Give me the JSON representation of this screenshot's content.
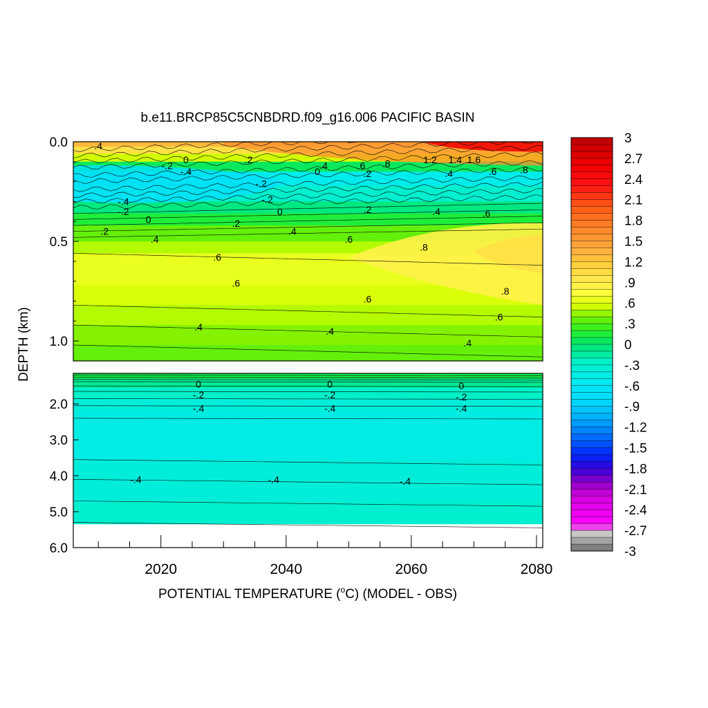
{
  "chart_data": {
    "type": "heatmap",
    "title": "b.e11.BRCP85C5CNBDRD.f09_g16.006 PACIFIC BASIN",
    "xlabel_main": "POTENTIAL TEMPERATURE (",
    "xlabel_unit": "C) (MODEL - OBS)",
    "xlabel_degree": "o",
    "ylabel": "DEPTH (km)",
    "xlim": [
      2006,
      2081
    ],
    "x_ticks": [
      "2020",
      "2040",
      "2060",
      "2080"
    ],
    "x_tick_values": [
      2020,
      2040,
      2060,
      2080
    ],
    "upper_panel": {
      "ylim": [
        0.0,
        1.1
      ],
      "y_ticks": [
        "0.0",
        "0.5",
        "1.0"
      ],
      "y_tick_values": [
        0.0,
        0.5,
        1.0
      ]
    },
    "lower_panel": {
      "ylim": [
        1.15,
        6.0
      ],
      "y_ticks": [
        "2.0",
        "3.0",
        "4.0",
        "5.0",
        "6.0"
      ],
      "y_tick_values": [
        2.0,
        3.0,
        4.0,
        5.0,
        6.0
      ],
      "data_bottom_depth": 5.35
    },
    "colorbar": {
      "range": [
        -3,
        3
      ],
      "labels": [
        "3",
        "2.7",
        "2.4",
        "2.1",
        "1.8",
        "1.5",
        "1.2",
        ".9",
        ".6",
        ".3",
        "0",
        "-.3",
        "-.6",
        "-.9",
        "-1.2",
        "-1.5",
        "-1.8",
        "-2.1",
        "-2.4",
        "-2.7",
        "-3"
      ],
      "label_values": [
        3,
        2.7,
        2.4,
        2.1,
        1.8,
        1.5,
        1.2,
        0.9,
        0.6,
        0.3,
        0,
        -0.3,
        -0.6,
        -0.9,
        -1.2,
        -1.5,
        -1.8,
        -2.1,
        -2.4,
        -2.7,
        -3
      ]
    },
    "bands": [
      {
        "from": 0.0,
        "to": 0.025,
        "value": 1.3
      },
      {
        "from": 0.025,
        "to": 0.06,
        "value": 1.0
      },
      {
        "from": 0.06,
        "to": 0.1,
        "value": 0.55
      },
      {
        "from": 0.1,
        "to": 0.15,
        "value": 0.05
      },
      {
        "from": 0.15,
        "to": 0.22,
        "value": -0.5
      },
      {
        "from": 0.22,
        "to": 0.3,
        "value": -0.3
      },
      {
        "from": 0.3,
        "to": 0.36,
        "value": -0.05
      },
      {
        "from": 0.36,
        "to": 0.42,
        "value": 0.15
      },
      {
        "from": 0.42,
        "to": 0.5,
        "value": 0.35
      },
      {
        "from": 0.5,
        "to": 0.56,
        "value": 0.5
      },
      {
        "from": 0.56,
        "to": 0.72,
        "value": 0.65
      },
      {
        "from": 0.72,
        "to": 0.82,
        "value": 0.58
      },
      {
        "from": 0.82,
        "to": 0.92,
        "value": 0.5
      },
      {
        "from": 0.92,
        "to": 1.02,
        "value": 0.42
      },
      {
        "from": 1.02,
        "to": 1.1,
        "value": 0.35
      }
    ],
    "lower_bands": [
      {
        "from": 1.15,
        "to": 1.3,
        "value": 0.1
      },
      {
        "from": 1.3,
        "to": 1.55,
        "value": -0.1
      },
      {
        "from": 1.55,
        "to": 1.85,
        "value": -0.25
      },
      {
        "from": 1.85,
        "to": 2.2,
        "value": -0.38
      },
      {
        "from": 2.2,
        "to": 3.55,
        "value": -0.45
      },
      {
        "from": 3.55,
        "to": 4.7,
        "value": -0.38
      },
      {
        "from": 4.7,
        "to": 5.35,
        "value": -0.3
      }
    ],
    "contour_labels_upper": [
      {
        "text": ".4",
        "x": 2010,
        "y": 0.02
      },
      {
        "text": "-.2",
        "x": 2021,
        "y": 0.12
      },
      {
        "text": "-.4",
        "x": 2024,
        "y": 0.15
      },
      {
        "text": "0",
        "x": 2024,
        "y": 0.09
      },
      {
        "text": ".2",
        "x": 2034,
        "y": 0.09
      },
      {
        "text": "-.2",
        "x": 2036,
        "y": 0.21
      },
      {
        "text": "0",
        "x": 2045,
        "y": 0.15
      },
      {
        "text": ".4",
        "x": 2046,
        "y": 0.12
      },
      {
        "text": ".6",
        "x": 2052,
        "y": 0.12
      },
      {
        "text": ".8",
        "x": 2056,
        "y": 0.11
      },
      {
        "text": ".2",
        "x": 2053,
        "y": 0.16
      },
      {
        "text": "1.2",
        "x": 2063,
        "y": 0.09
      },
      {
        "text": "1.4",
        "x": 2067,
        "y": 0.09
      },
      {
        "text": "1.6",
        "x": 2070,
        "y": 0.09
      },
      {
        "text": ".4",
        "x": 2066,
        "y": 0.16
      },
      {
        "text": ".6",
        "x": 2073,
        "y": 0.15
      },
      {
        "text": ".8",
        "x": 2078,
        "y": 0.14
      },
      {
        "text": "-.4",
        "x": 2014,
        "y": 0.3
      },
      {
        "text": "-.2",
        "x": 2014,
        "y": 0.35
      },
      {
        "text": "-.2",
        "x": 2037,
        "y": 0.29
      },
      {
        "text": "0",
        "x": 2018,
        "y": 0.39
      },
      {
        "text": "0",
        "x": 2039,
        "y": 0.35
      },
      {
        "text": ".2",
        "x": 2011,
        "y": 0.45
      },
      {
        "text": ".2",
        "x": 2032,
        "y": 0.41
      },
      {
        "text": ".2",
        "x": 2053,
        "y": 0.34
      },
      {
        "text": ".4",
        "x": 2019,
        "y": 0.49
      },
      {
        "text": ".4",
        "x": 2041,
        "y": 0.45
      },
      {
        "text": ".4",
        "x": 2064,
        "y": 0.35
      },
      {
        "text": ".6",
        "x": 2050,
        "y": 0.49
      },
      {
        "text": ".6",
        "x": 2072,
        "y": 0.36
      },
      {
        "text": ".6",
        "x": 2029,
        "y": 0.58
      },
      {
        "text": ".8",
        "x": 2062,
        "y": 0.53
      },
      {
        "text": ".6",
        "x": 2032,
        "y": 0.71
      },
      {
        "text": ".6",
        "x": 2053,
        "y": 0.79
      },
      {
        "text": ".8",
        "x": 2075,
        "y": 0.75
      },
      {
        "text": ".6",
        "x": 2074,
        "y": 0.88
      },
      {
        "text": ".4",
        "x": 2026,
        "y": 0.93
      },
      {
        "text": ".4",
        "x": 2047,
        "y": 0.95
      },
      {
        "text": ".4",
        "x": 2069,
        "y": 1.01
      }
    ],
    "contour_labels_lower": [
      {
        "text": "0",
        "x": 2026,
        "y": 1.45
      },
      {
        "text": "0",
        "x": 2047,
        "y": 1.45
      },
      {
        "text": "0",
        "x": 2068,
        "y": 1.5
      },
      {
        "text": "-.2",
        "x": 2026,
        "y": 1.75
      },
      {
        "text": "-.2",
        "x": 2047,
        "y": 1.75
      },
      {
        "text": "-.2",
        "x": 2068,
        "y": 1.8
      },
      {
        "text": "-.4",
        "x": 2026,
        "y": 2.12
      },
      {
        "text": "-.4",
        "x": 2047,
        "y": 2.12
      },
      {
        "text": "-.4",
        "x": 2068,
        "y": 2.12
      },
      {
        "text": "-.4",
        "x": 2016,
        "y": 4.1
      },
      {
        "text": "-.4",
        "x": 2038,
        "y": 4.1
      },
      {
        "text": "-.4",
        "x": 2059,
        "y": 4.15
      }
    ]
  }
}
